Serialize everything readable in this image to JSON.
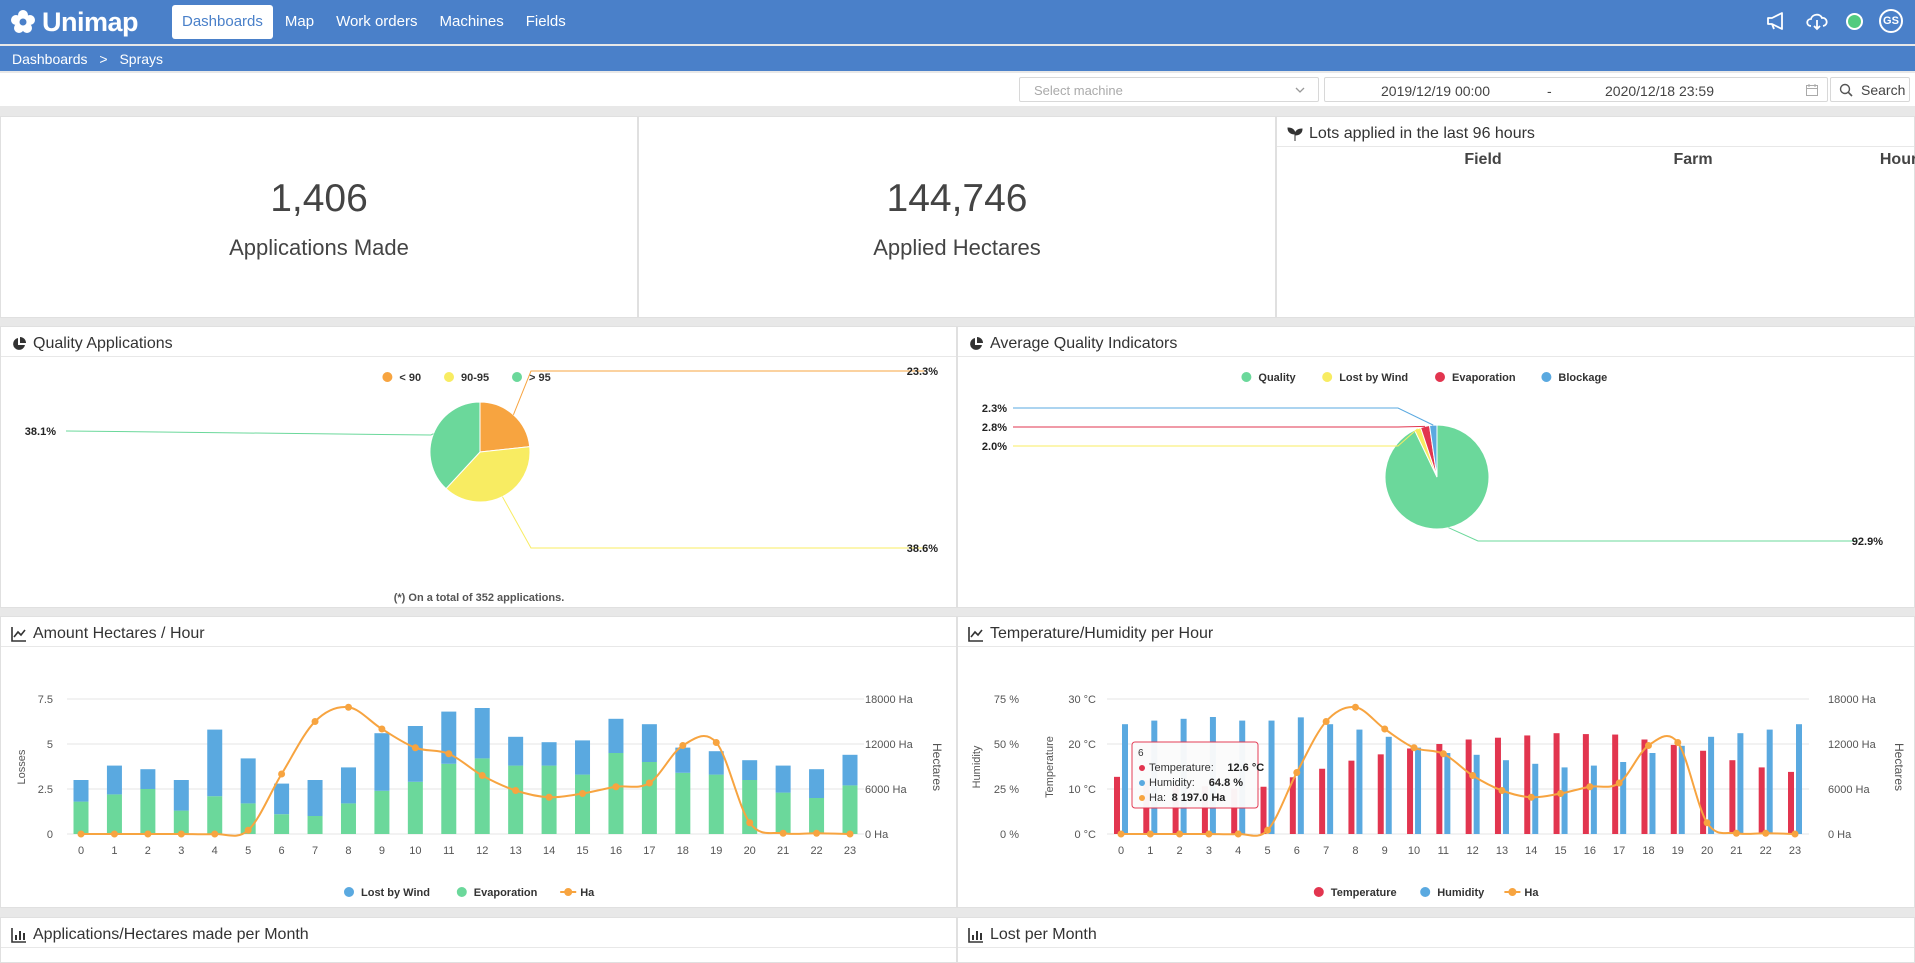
{
  "app": {
    "logo": "Unimap",
    "avatar": "GS"
  },
  "nav": [
    {
      "label": "Dashboards",
      "active": true
    },
    {
      "label": "Map"
    },
    {
      "label": "Work orders"
    },
    {
      "label": "Machines"
    },
    {
      "label": "Fields"
    }
  ],
  "breadcrumb": {
    "root": "Dashboards",
    "sep": ">",
    "current": "Sprays"
  },
  "filters": {
    "machine_placeholder": "Select machine",
    "date_from": "2019/12/19 00:00",
    "date_sep": "-",
    "date_to": "2020/12/18 23:59",
    "search_label": "Search"
  },
  "kpis": {
    "applications": {
      "value": "1,406",
      "label": "Applications Made"
    },
    "hectares": {
      "value": "144,746",
      "label": "Applied Hectares"
    }
  },
  "lots": {
    "title": "Lots applied in the last 96 hours",
    "columns": [
      "Field",
      "Farm",
      "Hours"
    ]
  },
  "quality_card": {
    "title": "Quality Applications",
    "footnote": "(*) On a total of 352 applications."
  },
  "avg_quality_card": {
    "title": "Average Quality Indicators"
  },
  "hectares_card": {
    "title": "Amount Hectares / Hour"
  },
  "temp_card": {
    "title": "Temperature/Humidity per Hour"
  },
  "monthly_card": {
    "title": "Applications/Hectares made per Month"
  },
  "lost_month_card": {
    "title": "Lost per Month"
  },
  "colors": {
    "brand": "#4a80c9",
    "orange": "#f7a440",
    "yellow": "#f8ec62",
    "green": "#6bd89b",
    "red": "#e2354f",
    "blue": "#5aa9e0"
  },
  "chart_data": [
    {
      "type": "pie",
      "name": "Quality Applications",
      "legend": [
        "< 90",
        "90-95",
        "> 95"
      ],
      "slices": [
        {
          "label": "< 90",
          "value": 23.3,
          "text": "23.3%",
          "color": "#f7a440"
        },
        {
          "label": "90-95",
          "value": 38.6,
          "text": "38.6%",
          "color": "#f8ec62"
        },
        {
          "label": "> 95",
          "value": 38.1,
          "text": "38.1%",
          "color": "#6bd89b"
        }
      ]
    },
    {
      "type": "pie",
      "name": "Average Quality Indicators",
      "legend": [
        "Quality",
        "Lost by Wind",
        "Evaporation",
        "Blockage"
      ],
      "slices": [
        {
          "label": "Quality",
          "value": 92.9,
          "text": "92.9%",
          "color": "#6bd89b"
        },
        {
          "label": "Lost by Wind",
          "value": 2.0,
          "text": "2.0%",
          "color": "#f8ec62"
        },
        {
          "label": "Evaporation",
          "value": 2.8,
          "text": "2.8%",
          "color": "#e2354f"
        },
        {
          "label": "Blockage",
          "value": 2.3,
          "text": "2.3%",
          "color": "#5aa9e0"
        }
      ]
    },
    {
      "type": "bar",
      "name": "Amount Hectares / Hour",
      "categories": [
        "0",
        "1",
        "2",
        "3",
        "4",
        "5",
        "6",
        "7",
        "8",
        "9",
        "10",
        "11",
        "12",
        "13",
        "14",
        "15",
        "16",
        "17",
        "18",
        "19",
        "20",
        "21",
        "22",
        "23"
      ],
      "ylabel": "Losses",
      "y2label": "Hectares",
      "yticks": [
        "0",
        "2.5",
        "5",
        "7.5"
      ],
      "ylim": [
        0,
        7.5
      ],
      "y2ticks": [
        "0 Ha",
        "6000 Ha",
        "12000 Ha",
        "18000 Ha"
      ],
      "y2lim": [
        0,
        18000
      ],
      "legend": [
        "Lost by Wind",
        "Evaporation",
        "Ha"
      ],
      "series": [
        {
          "name": "Evaporation",
          "stack": true,
          "color": "#6bd89b",
          "values": [
            1.8,
            2.2,
            2.5,
            1.3,
            2.1,
            1.7,
            1.1,
            1.0,
            1.7,
            2.4,
            2.9,
            3.9,
            4.2,
            3.8,
            3.8,
            3.3,
            4.5,
            4.0,
            3.4,
            3.3,
            3.0,
            2.3,
            2.0,
            2.7
          ]
        },
        {
          "name": "Lost by Wind",
          "stack": true,
          "color": "#5aa9e0",
          "values": [
            1.2,
            1.6,
            1.1,
            1.7,
            3.7,
            2.5,
            1.7,
            2.0,
            2.0,
            3.2,
            3.1,
            2.9,
            2.8,
            1.6,
            1.3,
            1.9,
            1.9,
            2.1,
            1.4,
            1.3,
            1.1,
            1.5,
            1.6,
            1.7
          ]
        },
        {
          "name": "Ha",
          "axis": "right",
          "line": true,
          "color": "#f7a440",
          "values": [
            0,
            0,
            0,
            0,
            0,
            500,
            8000,
            15000,
            16900,
            14000,
            11500,
            10700,
            7800,
            5800,
            4900,
            5400,
            6300,
            6800,
            11800,
            12200,
            1500,
            100,
            100,
            0
          ]
        }
      ]
    },
    {
      "type": "bar",
      "name": "Temperature/Humidity per Hour",
      "categories": [
        "0",
        "1",
        "2",
        "3",
        "4",
        "5",
        "6",
        "7",
        "8",
        "9",
        "10",
        "11",
        "12",
        "13",
        "14",
        "15",
        "16",
        "17",
        "18",
        "19",
        "20",
        "21",
        "22",
        "23"
      ],
      "ylabel_humidity": "Humidity",
      "ylabel_temperature": "Temperature",
      "y2label": "Hectares",
      "humidity_ticks": [
        "0 %",
        "25 %",
        "50 %",
        "75 %"
      ],
      "temp_ticks": [
        "0 °C",
        "10 °C",
        "20 °C",
        "30 °C"
      ],
      "y2ticks": [
        "0 Ha",
        "6000 Ha",
        "12000 Ha",
        "18000 Ha"
      ],
      "temp_lim": [
        0,
        30
      ],
      "y2lim": [
        0,
        18000
      ],
      "legend": [
        "Temperature",
        "Humidity",
        "Ha"
      ],
      "series": [
        {
          "name": "Temperature",
          "color": "#e2354f",
          "values": [
            12.7,
            11.9,
            10.9,
            10.6,
            10.1,
            10.5,
            12.6,
            14.5,
            16.3,
            17.7,
            19.0,
            20.0,
            21.0,
            21.4,
            21.9,
            22.4,
            22.2,
            22.1,
            21.0,
            19.8,
            18.5,
            16.4,
            14.8,
            13.8
          ]
        },
        {
          "name": "Humidity",
          "color": "#5aa9e0",
          "values": [
            61,
            63,
            64,
            65,
            63,
            63,
            64.8,
            61,
            58,
            54,
            48,
            45,
            44,
            41,
            39,
            37,
            38,
            40,
            45,
            49,
            54,
            56,
            58,
            61
          ]
        },
        {
          "name": "Ha",
          "axis": "right",
          "line": true,
          "color": "#f7a440",
          "values": [
            0,
            0,
            0,
            0,
            0,
            500,
            8197,
            15000,
            16900,
            14000,
            11500,
            10700,
            7800,
            5800,
            4900,
            5400,
            6300,
            6800,
            11800,
            12200,
            1500,
            100,
            100,
            0
          ]
        }
      ],
      "tooltip": {
        "title": "6",
        "rows": [
          {
            "label": "Temperature:",
            "value": "12.6 °C",
            "color": "#e2354f"
          },
          {
            "label": "Humidity:",
            "value": "64.8 %",
            "color": "#5aa9e0"
          },
          {
            "label": "Ha:",
            "value": "8 197.0 Ha",
            "color": "#f7a440"
          }
        ]
      }
    }
  ]
}
